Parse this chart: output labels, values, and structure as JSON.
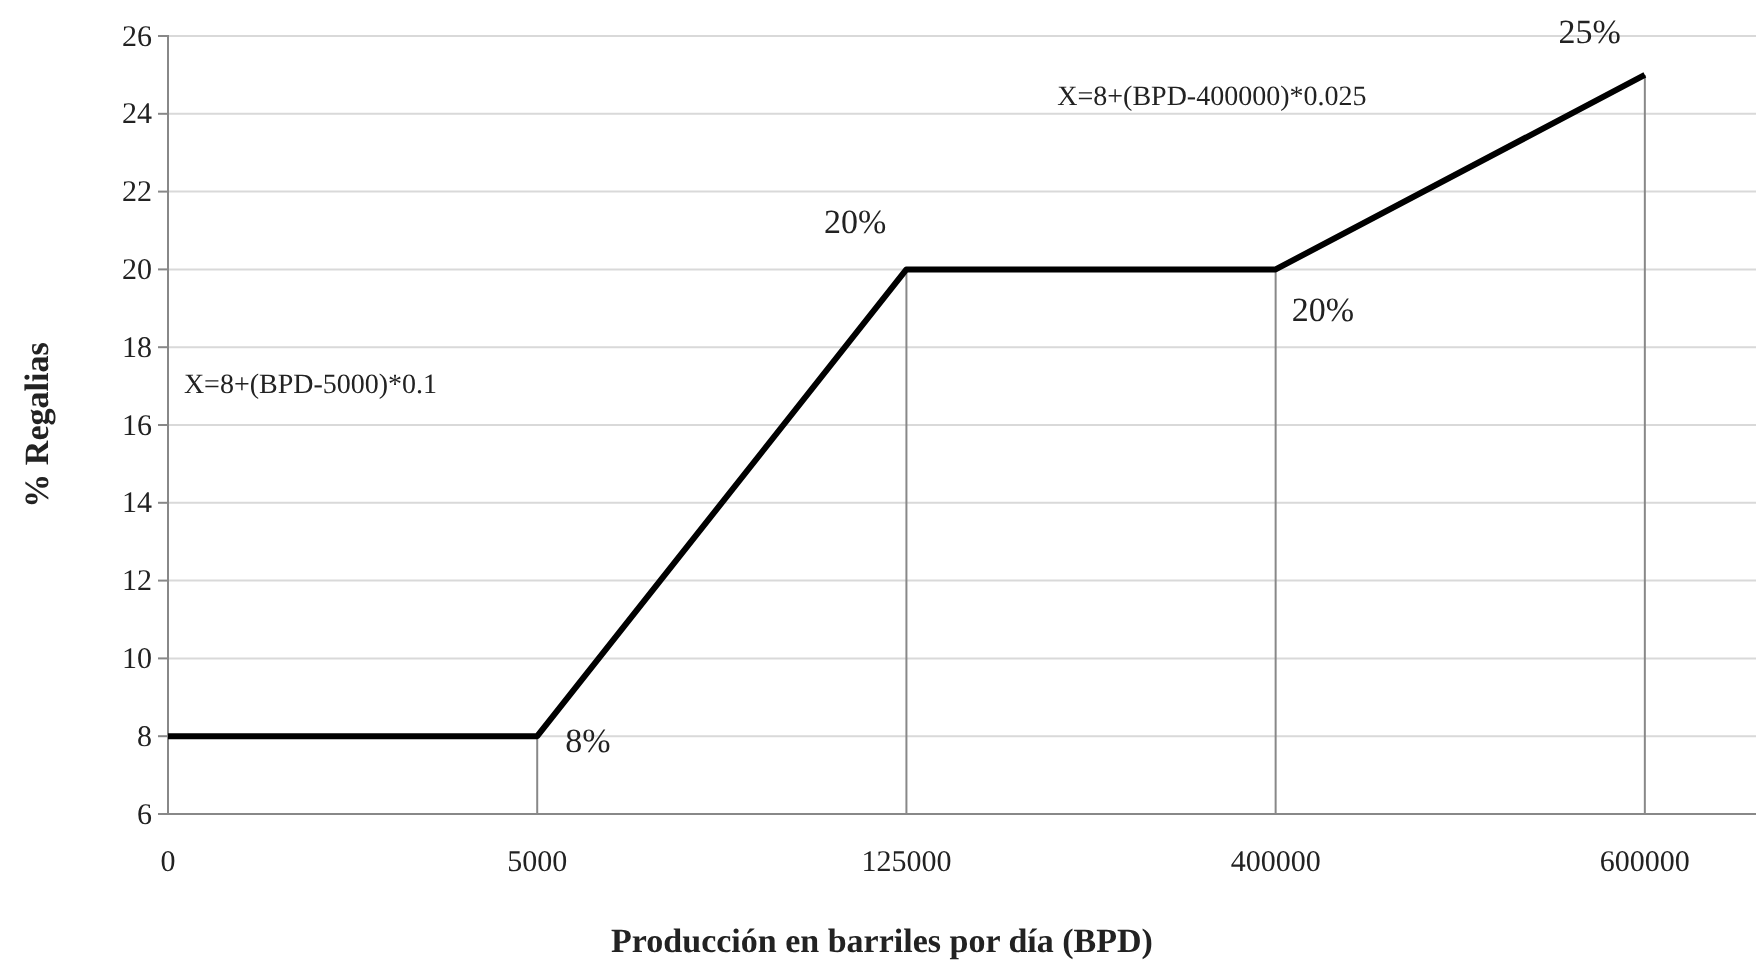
{
  "chart_data": {
    "type": "line",
    "xlabel": "Producción en barriles por día (BPD)",
    "ylabel": "% Regalias",
    "categories": [
      "0",
      "5000",
      "125000",
      "400000",
      "600000"
    ],
    "series": [
      {
        "color": "#000000",
        "values": [
          8,
          8,
          20,
          20,
          25
        ]
      }
    ],
    "ylim": [
      6,
      26
    ],
    "yticks": [
      6,
      8,
      10,
      12,
      14,
      16,
      18,
      20,
      22,
      24,
      26
    ],
    "grid": "y",
    "marker": "none",
    "line_style": "solid",
    "ref_lines": [
      {
        "axis": "x",
        "value": "5000",
        "color": "#888888"
      },
      {
        "axis": "x",
        "value": "125000",
        "color": "#888888"
      },
      {
        "axis": "x",
        "value": "400000",
        "color": "#888888"
      },
      {
        "axis": "x",
        "value": "600000",
        "color": "#888888"
      }
    ],
    "annotations": [
      {
        "text": "8%",
        "x": "5000",
        "y": 8
      },
      {
        "text": "20%",
        "x": "125000",
        "y": 20
      },
      {
        "text": "20%",
        "x": "400000",
        "y": 20
      },
      {
        "text": "25%",
        "x": "600000",
        "y": 25
      },
      "X=8+(BPD-5000)*0.1",
      "X=8+(BPD-400000)*0.025"
    ]
  }
}
